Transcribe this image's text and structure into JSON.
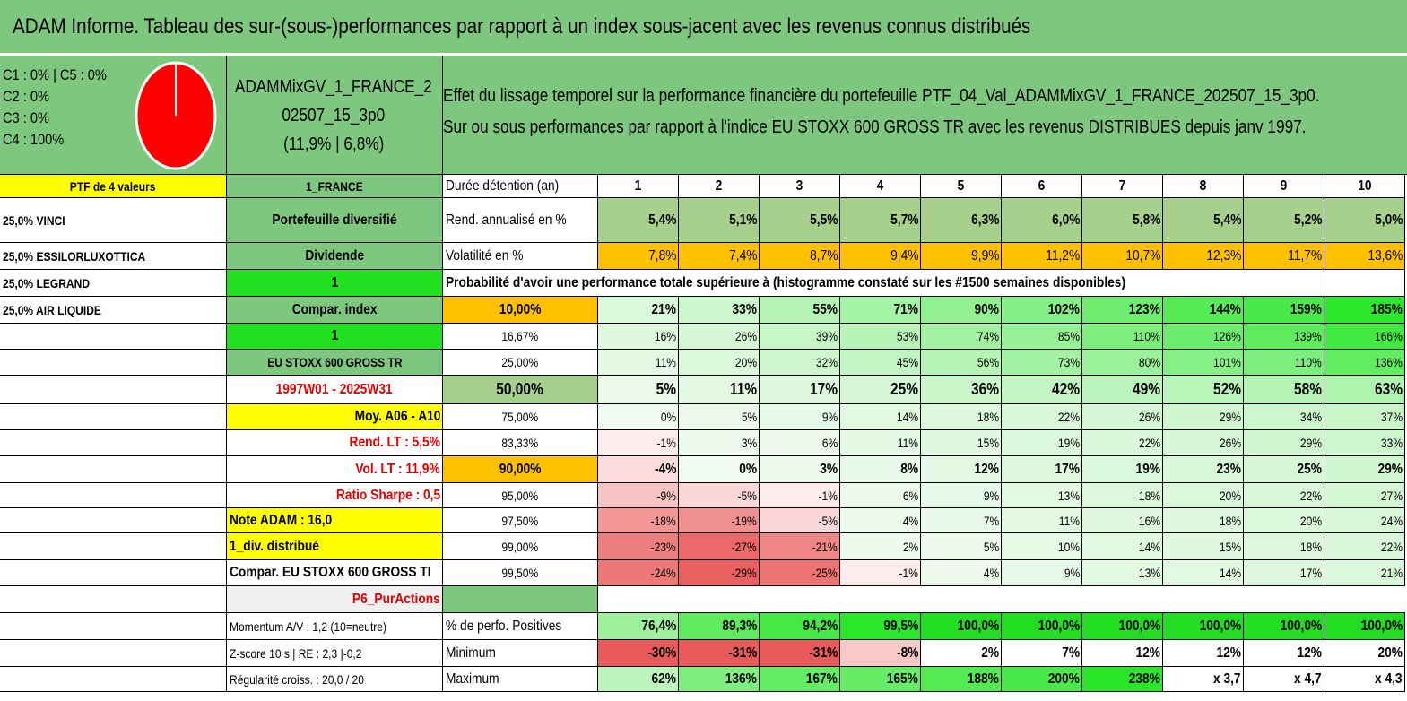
{
  "title": "ADAM Informe. Tableau des sur-(sous-)performances par rapport à un index sous-jacent avec les revenus connus distribués",
  "pie": {
    "legend": [
      "C1 : 0% | C5 : 0%",
      "C2 : 0%",
      "C3 : 0%",
      "C4 : 100%"
    ],
    "slices": [
      {
        "name": "C4",
        "value": 100,
        "color": "#ff0000"
      }
    ]
  },
  "fund": {
    "line1": "ADAMMixGV_1_FRANCE_2",
    "line2": "02507_15_3p0",
    "line3": "(11,9% | 6,8%)"
  },
  "effect": {
    "line1": "Effet du lissage temporel sur la performance financière du portefeuille PTF_04_Val_ADAMMixGV_1_FRANCE_202507_15_3p0.",
    "line2": "Sur ou sous performances par rapport à l'indice EU STOXX 600 GROSS TR avec les revenus DISTRIBUES depuis janv 1997."
  },
  "colors": {
    "header_green": "#7dc77f",
    "yellow": "#ffff00",
    "bright_green": "#20e020",
    "orange": "#ffc000",
    "red_text": "#e00000"
  },
  "left": {
    "ptf_label": "PTF de 4 valeurs",
    "holdings": [
      "25,0% VINCI",
      "25,0% ESSILORLUXOTTICA",
      "25,0% LEGRAND",
      "25,0% AIR LIQUIDE"
    ]
  },
  "mid": {
    "france": "1_FRANCE",
    "diversified": "Portefeuille diversifié",
    "dividende": "Dividende",
    "one_a": "1",
    "compar_index": "Compar. index",
    "one_b": "1",
    "index_name": "EU STOXX 600 GROSS TR",
    "period": "1997W01 - 2025W31",
    "moy": "Moy. A06 - A10",
    "rend_lt": "Rend. LT : 5,5%",
    "vol_lt": "Vol. LT : 11,9%",
    "sharpe": "Ratio Sharpe : 0,5",
    "note": "Note ADAM : 16,0",
    "div": "1_div. distribué",
    "compar": "Compar. EU STOXX 600 GROSS TI",
    "p6": "P6_PurActions",
    "momentum": "Momentum A/V : 1,2 (10=neutre)",
    "zscore": "Z-score 10 s | RE : 2,3 |-0,2",
    "regul": "Régularité croiss. : 20,0 / 20"
  },
  "table": {
    "duree_label": "Durée détention (an)",
    "years": [
      "1",
      "2",
      "3",
      "4",
      "5",
      "6",
      "7",
      "8",
      "9",
      "10"
    ],
    "rend_label": "Rend. annualisé en %",
    "rend": [
      "5,4%",
      "5,1%",
      "5,5%",
      "5,7%",
      "6,3%",
      "6,0%",
      "5,8%",
      "5,4%",
      "5,2%",
      "5,0%"
    ],
    "vol_label": "Volatilité en %",
    "vol": [
      "7,8%",
      "7,4%",
      "8,7%",
      "9,4%",
      "9,9%",
      "11,2%",
      "10,7%",
      "12,3%",
      "11,7%",
      "13,6%"
    ],
    "prob_label": "Probabilité d'avoir une performance totale supérieure à (histogramme constaté sur les #1500 semaines disponibles)",
    "quantiles": [
      {
        "p": "10,00%",
        "vals": [
          "21%",
          "33%",
          "55%",
          "71%",
          "90%",
          "102%",
          "123%",
          "144%",
          "159%",
          "185%"
        ]
      },
      {
        "p": "16,67%",
        "vals": [
          "16%",
          "26%",
          "39%",
          "53%",
          "74%",
          "85%",
          "110%",
          "126%",
          "139%",
          "166%"
        ]
      },
      {
        "p": "25,00%",
        "vals": [
          "11%",
          "20%",
          "32%",
          "45%",
          "56%",
          "73%",
          "80%",
          "101%",
          "110%",
          "136%"
        ]
      },
      {
        "p": "50,00%",
        "vals": [
          "5%",
          "11%",
          "17%",
          "25%",
          "36%",
          "42%",
          "49%",
          "52%",
          "58%",
          "63%"
        ]
      },
      {
        "p": "75,00%",
        "vals": [
          "0%",
          "5%",
          "9%",
          "14%",
          "18%",
          "22%",
          "26%",
          "29%",
          "34%",
          "37%"
        ]
      },
      {
        "p": "83,33%",
        "vals": [
          "-1%",
          "3%",
          "6%",
          "11%",
          "15%",
          "19%",
          "22%",
          "26%",
          "29%",
          "33%"
        ]
      },
      {
        "p": "90,00%",
        "vals": [
          "-4%",
          "0%",
          "3%",
          "8%",
          "12%",
          "17%",
          "19%",
          "23%",
          "25%",
          "29%"
        ]
      },
      {
        "p": "95,00%",
        "vals": [
          "-9%",
          "-5%",
          "-1%",
          "6%",
          "9%",
          "13%",
          "18%",
          "20%",
          "22%",
          "27%"
        ]
      },
      {
        "p": "97,50%",
        "vals": [
          "-18%",
          "-19%",
          "-5%",
          "4%",
          "7%",
          "11%",
          "16%",
          "18%",
          "20%",
          "24%"
        ]
      },
      {
        "p": "99,00%",
        "vals": [
          "-23%",
          "-27%",
          "-21%",
          "2%",
          "5%",
          "10%",
          "14%",
          "15%",
          "18%",
          "22%"
        ]
      },
      {
        "p": "99,50%",
        "vals": [
          "-24%",
          "-29%",
          "-25%",
          "-1%",
          "4%",
          "9%",
          "13%",
          "14%",
          "17%",
          "21%"
        ]
      }
    ],
    "pos_label": "% de perfo. Positives",
    "pos": [
      "76,4%",
      "89,3%",
      "94,2%",
      "99,5%",
      "100,0%",
      "100,0%",
      "100,0%",
      "100,0%",
      "100,0%",
      "100,0%"
    ],
    "min_label": "Minimum",
    "min": [
      "-30%",
      "-31%",
      "-31%",
      "-8%",
      "2%",
      "7%",
      "12%",
      "12%",
      "12%",
      "20%"
    ],
    "max_label": "Maximum",
    "max": [
      "62%",
      "136%",
      "167%",
      "165%",
      "188%",
      "200%",
      "238%",
      "x 3,7",
      "x 4,7",
      "x 4,3"
    ]
  }
}
